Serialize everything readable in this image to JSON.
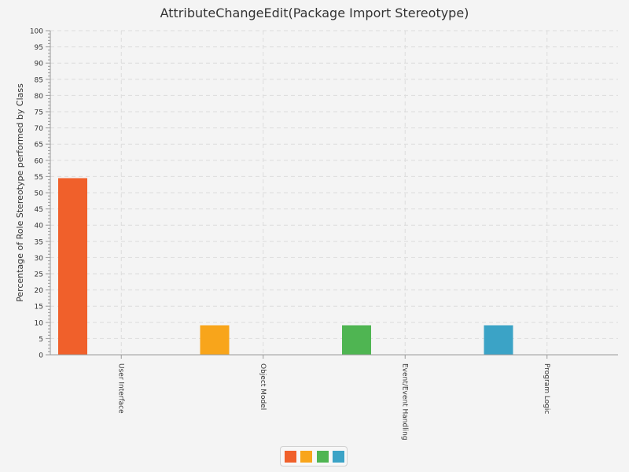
{
  "chart_data": {
    "type": "bar",
    "title": "AttributeChangeEdit(Package Import Stereotype)",
    "ylabel": "Percentage of Role Stereotype performed by Class",
    "xlabel": "",
    "categories": [
      "User Interface",
      "Object Model",
      "Event/Event Handling",
      "Program Logic"
    ],
    "values": [
      54.5,
      9.1,
      9.1,
      9.1
    ],
    "colors": [
      "#f0602b",
      "#f8a51b",
      "#4fb552",
      "#3ba3c6"
    ],
    "ylim": [
      0,
      100
    ],
    "yticks": [
      0,
      5,
      10,
      15,
      20,
      25,
      30,
      35,
      40,
      45,
      50,
      55,
      60,
      65,
      70,
      75,
      80,
      85,
      90,
      95,
      100
    ],
    "grid": true,
    "legend": "bottom-center"
  }
}
